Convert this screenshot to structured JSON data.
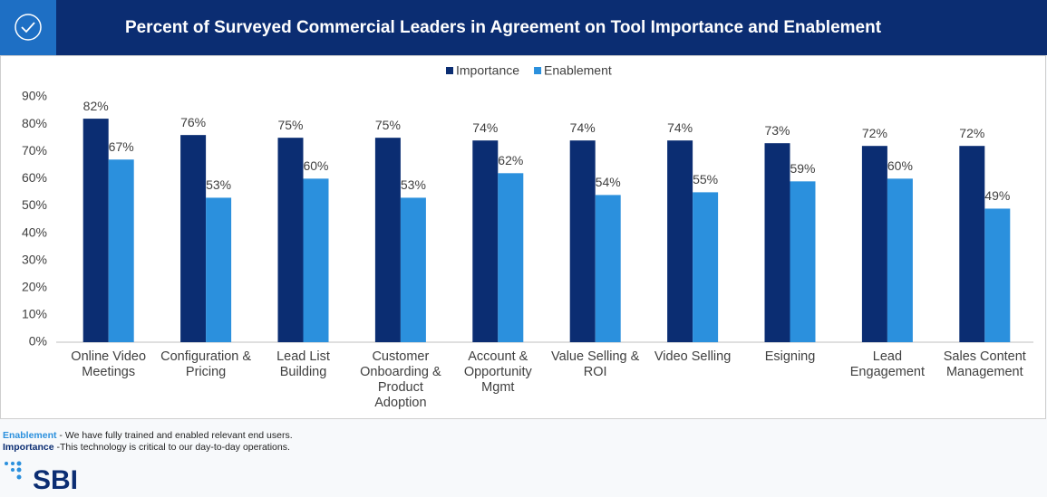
{
  "chart_data": {
    "type": "bar",
    "title": "Percent of Surveyed Commercial Leaders in Agreement on Tool Importance and Enablement",
    "categories": [
      "Online Video Meetings",
      "Configuration & Pricing",
      "Lead List Building",
      "Customer Onboarding & Product Adoption",
      "Account & Opportunity Mgmt",
      "Value Selling & ROI",
      "Video Selling",
      "Esigning",
      "Lead Engagement",
      "Sales Content Management"
    ],
    "series": [
      {
        "name": "Importance",
        "color": "#0b2d72",
        "values": [
          82,
          76,
          75,
          75,
          74,
          74,
          74,
          73,
          72,
          72
        ],
        "value_labels": [
          "82%",
          "76%",
          "75%",
          "75%",
          "74%",
          "74%",
          "74%",
          "73%",
          "72%",
          "72%"
        ]
      },
      {
        "name": "Enablement",
        "color": "#2b90dd",
        "values": [
          67,
          53,
          60,
          53,
          62,
          54,
          55,
          59,
          60,
          49
        ],
        "value_labels": [
          "67%",
          "53%",
          "60%",
          "53%",
          "62%",
          "54%",
          "55%",
          "59%",
          "60%",
          "49%"
        ]
      }
    ],
    "ylim": [
      0,
      90
    ],
    "yticks": [
      {
        "value": 0,
        "label": "0%"
      },
      {
        "value": 10,
        "label": "10%"
      },
      {
        "value": 20,
        "label": "20%"
      },
      {
        "value": 30,
        "label": "30%"
      },
      {
        "value": 40,
        "label": "40%"
      },
      {
        "value": 50,
        "label": "50%"
      },
      {
        "value": 60,
        "label": "60%"
      },
      {
        "value": 70,
        "label": "70%"
      },
      {
        "value": 80,
        "label": "80%"
      },
      {
        "value": 90,
        "label": "90%"
      }
    ],
    "grid": false,
    "legend": "top"
  },
  "footnotes": [
    {
      "term": "Enablement",
      "text": " - We have fully trained and enabled relevant end users."
    },
    {
      "term": "Importance",
      "text": " -This technology is critical to our day-to-day operations."
    }
  ],
  "logo": "SBI"
}
